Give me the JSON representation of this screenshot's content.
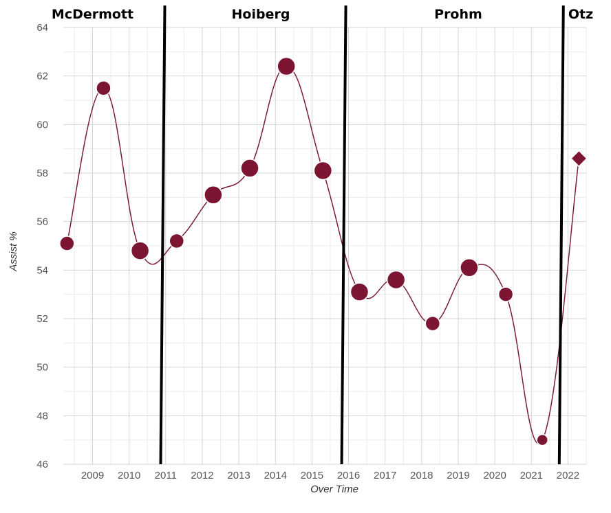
{
  "chart_data": {
    "type": "line",
    "title": "",
    "xlabel": "Over Time",
    "ylabel": "Assist %",
    "ylim": [
      46,
      64
    ],
    "xlim": [
      2008.2,
      2022.5
    ],
    "y_ticks": [
      "46",
      "48",
      "50",
      "52",
      "54",
      "56",
      "58",
      "60",
      "62",
      "64"
    ],
    "x_ticks": [
      "2009",
      "2010",
      "2011",
      "2012",
      "2013",
      "2014",
      "2015",
      "2016",
      "2017",
      "2018",
      "2019",
      "2020",
      "2021",
      "2022"
    ],
    "grid": true,
    "line_color": "#7b1d3a",
    "marker_color": "#7b1531",
    "series": [
      {
        "points": [
          {
            "x": 2008.3,
            "y": 55.1,
            "size": "medium",
            "marker": "circle"
          },
          {
            "x": 2009.3,
            "y": 61.5,
            "size": "medium",
            "marker": "circle"
          },
          {
            "x": 2010.3,
            "y": 54.8,
            "size": "large",
            "marker": "circle"
          },
          {
            "x": 2011.3,
            "y": 55.2,
            "size": "medium",
            "marker": "circle"
          },
          {
            "x": 2012.3,
            "y": 57.1,
            "size": "large",
            "marker": "circle"
          },
          {
            "x": 2013.3,
            "y": 58.2,
            "size": "large",
            "marker": "circle"
          },
          {
            "x": 2014.3,
            "y": 62.4,
            "size": "large",
            "marker": "circle"
          },
          {
            "x": 2015.3,
            "y": 58.1,
            "size": "large",
            "marker": "circle"
          },
          {
            "x": 2016.3,
            "y": 53.1,
            "size": "large",
            "marker": "circle"
          },
          {
            "x": 2017.3,
            "y": 53.6,
            "size": "large",
            "marker": "circle"
          },
          {
            "x": 2018.3,
            "y": 51.8,
            "size": "medium",
            "marker": "circle"
          },
          {
            "x": 2019.3,
            "y": 54.1,
            "size": "large",
            "marker": "circle"
          },
          {
            "x": 2020.3,
            "y": 53.0,
            "size": "medium",
            "marker": "circle"
          },
          {
            "x": 2021.3,
            "y": 47.0,
            "size": "small",
            "marker": "circle"
          },
          {
            "x": 2022.3,
            "y": 58.6,
            "size": "medium",
            "marker": "diamond"
          }
        ]
      }
    ],
    "eras": [
      {
        "label": "McDermott",
        "start": 2008.2,
        "end": 2010.9
      },
      {
        "label": "Hoiberg",
        "start": 2010.9,
        "end": 2015.85
      },
      {
        "label": "Prohm",
        "start": 2015.85,
        "end": 2021.8
      },
      {
        "label": "Otz",
        "start": 2021.8,
        "end": 2022.5
      }
    ]
  }
}
